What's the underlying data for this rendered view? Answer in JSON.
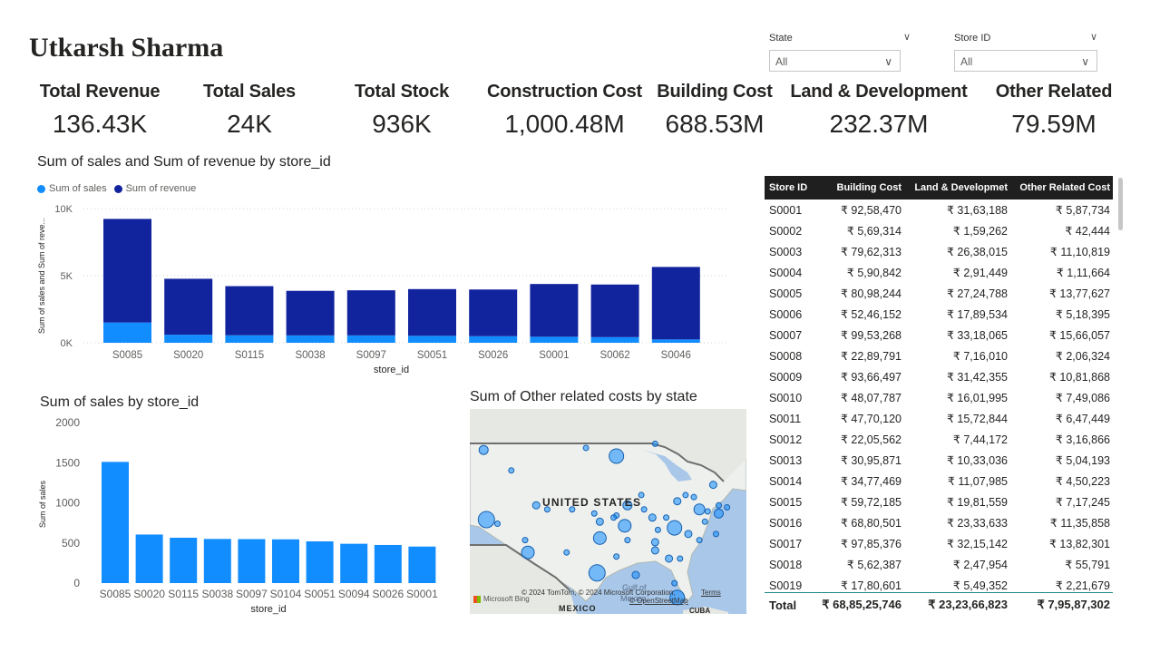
{
  "header": {
    "title": "Utkarsh Sharma"
  },
  "slicers": [
    {
      "label": "State",
      "value": "All"
    },
    {
      "label": "Store ID",
      "value": "All"
    }
  ],
  "kpis": [
    {
      "label": "Total Revenue",
      "value": "136.43K"
    },
    {
      "label": "Total Sales",
      "value": "24K"
    },
    {
      "label": "Total Stock",
      "value": "936K"
    },
    {
      "label": "Construction Cost",
      "value": "1,000.48M"
    },
    {
      "label": "Building Cost",
      "value": "688.53M"
    },
    {
      "label": "Land & Development",
      "value": "232.37M"
    },
    {
      "label": "Other Related",
      "value": "79.59M"
    }
  ],
  "colors": {
    "sales": "#118DFF",
    "revenue": "#12239E",
    "table_header": "#1f1f1f"
  },
  "chart1": {
    "title": "Sum of sales and Sum of revenue by store_id",
    "legend": [
      "Sum of sales",
      "Sum of revenue"
    ]
  },
  "chart2": {
    "title": "Sum of sales by store_id"
  },
  "map": {
    "title": "Sum of Other related costs by state",
    "country_label": "UNITED STATES",
    "mexico_label": "MEXICO",
    "gulf_label": "Gulf of",
    "mexico_small": "Mexico",
    "cuba_label": "CUBA",
    "copyright": "© 2024 TomTom, © 2024 Microsoft Corporation,",
    "terms": "Terms",
    "osm": "© OpenStreetMap",
    "bing": "Microsoft Bing"
  },
  "chart_data": [
    {
      "type": "bar",
      "stacked": true,
      "title": "Sum of sales and Sum of revenue by store_id",
      "xlabel": "store_id",
      "ylabel": "Sum of sales and Sum of reve...",
      "ylim": [
        0,
        10000
      ],
      "yticks": [
        "0K",
        "5K",
        "10K"
      ],
      "categories": [
        "S0085",
        "S0020",
        "S0115",
        "S0038",
        "S0097",
        "S0051",
        "S0026",
        "S0001",
        "S0062",
        "S0046"
      ],
      "series": [
        {
          "name": "Sum of sales",
          "values": [
            1510,
            600,
            560,
            550,
            550,
            520,
            490,
            450,
            420,
            250
          ]
        },
        {
          "name": "Sum of revenue",
          "values": [
            7720,
            4170,
            3660,
            3320,
            3360,
            3480,
            3480,
            3930,
            3920,
            5400
          ]
        }
      ],
      "legend_position": "top-left",
      "grid": true
    },
    {
      "type": "bar",
      "title": "Sum of sales by store_id",
      "xlabel": "store_id",
      "ylabel": "Sum of sales",
      "ylim": [
        0,
        2000
      ],
      "yticks": [
        "0",
        "500",
        "1000",
        "1500",
        "2000"
      ],
      "categories": [
        "S0085",
        "S0020",
        "S0115",
        "S0038",
        "S0097",
        "S0104",
        "S0051",
        "S0094",
        "S0026",
        "S0001"
      ],
      "values": [
        1510,
        605,
        565,
        550,
        548,
        545,
        520,
        490,
        475,
        455
      ],
      "grid": false
    }
  ],
  "table": {
    "headers": [
      "Store ID",
      "Building Cost",
      "Land & Developmet",
      "Other Related Cost"
    ],
    "rows": [
      [
        "S0001",
        "₹ 92,58,470",
        "₹ 31,63,188",
        "₹ 5,87,734"
      ],
      [
        "S0002",
        "₹ 5,69,314",
        "₹ 1,59,262",
        "₹ 42,444"
      ],
      [
        "S0003",
        "₹ 79,62,313",
        "₹ 26,38,015",
        "₹ 11,10,819"
      ],
      [
        "S0004",
        "₹ 5,90,842",
        "₹ 2,91,449",
        "₹ 1,11,664"
      ],
      [
        "S0005",
        "₹ 80,98,244",
        "₹ 27,24,788",
        "₹ 13,77,627"
      ],
      [
        "S0006",
        "₹ 52,46,152",
        "₹ 17,89,534",
        "₹ 5,18,395"
      ],
      [
        "S0007",
        "₹ 99,53,268",
        "₹ 33,18,065",
        "₹ 15,66,057"
      ],
      [
        "S0008",
        "₹ 22,89,791",
        "₹ 7,16,010",
        "₹ 2,06,324"
      ],
      [
        "S0009",
        "₹ 93,66,497",
        "₹ 31,42,355",
        "₹ 10,81,868"
      ],
      [
        "S0010",
        "₹ 48,07,787",
        "₹ 16,01,995",
        "₹ 7,49,086"
      ],
      [
        "S0011",
        "₹ 47,70,120",
        "₹ 15,72,844",
        "₹ 6,47,449"
      ],
      [
        "S0012",
        "₹ 22,05,562",
        "₹ 7,44,172",
        "₹ 3,16,866"
      ],
      [
        "S0013",
        "₹ 30,95,871",
        "₹ 10,33,036",
        "₹ 5,04,193"
      ],
      [
        "S0014",
        "₹ 34,77,469",
        "₹ 11,07,985",
        "₹ 4,50,223"
      ],
      [
        "S0015",
        "₹ 59,72,185",
        "₹ 19,81,559",
        "₹ 7,17,245"
      ],
      [
        "S0016",
        "₹ 68,80,501",
        "₹ 23,33,633",
        "₹ 11,35,858"
      ],
      [
        "S0017",
        "₹ 97,85,376",
        "₹ 32,15,142",
        "₹ 13,82,301"
      ],
      [
        "S0018",
        "₹ 5,62,387",
        "₹ 2,47,954",
        "₹ 55,791"
      ],
      [
        "S0019",
        "₹ 17,80,601",
        "₹ 5,49,352",
        "₹ 2,21,679"
      ]
    ],
    "total": [
      "Total",
      "₹ 68,85,25,746",
      "₹ 23,23,66,823",
      "₹ 7,95,87,302"
    ]
  },
  "map_bubbles": [
    [
      0.05,
      0.2,
      5
    ],
    [
      0.42,
      0.19,
      3
    ],
    [
      0.53,
      0.23,
      8
    ],
    [
      0.67,
      0.17,
      3
    ],
    [
      0.15,
      0.3,
      3
    ],
    [
      0.88,
      0.37,
      4
    ],
    [
      0.78,
      0.42,
      3
    ],
    [
      0.62,
      0.42,
      3
    ],
    [
      0.57,
      0.47,
      5
    ],
    [
      0.75,
      0.45,
      4
    ],
    [
      0.81,
      0.43,
      3
    ],
    [
      0.53,
      0.52,
      3
    ],
    [
      0.28,
      0.49,
      3
    ],
    [
      0.24,
      0.47,
      4
    ],
    [
      0.63,
      0.49,
      3
    ],
    [
      0.66,
      0.53,
      4
    ],
    [
      0.71,
      0.53,
      3
    ],
    [
      0.83,
      0.49,
      6
    ],
    [
      0.9,
      0.47,
      3
    ],
    [
      0.93,
      0.48,
      3
    ],
    [
      0.52,
      0.53,
      3
    ],
    [
      0.37,
      0.49,
      3
    ],
    [
      0.45,
      0.51,
      3
    ],
    [
      0.1,
      0.56,
      3
    ],
    [
      0.06,
      0.54,
      9
    ],
    [
      0.47,
      0.55,
      4
    ],
    [
      0.56,
      0.57,
      7
    ],
    [
      0.74,
      0.58,
      8
    ],
    [
      0.85,
      0.55,
      3
    ],
    [
      0.9,
      0.51,
      5
    ],
    [
      0.86,
      0.5,
      3
    ],
    [
      0.68,
      0.59,
      3
    ],
    [
      0.79,
      0.61,
      4
    ],
    [
      0.2,
      0.64,
      3
    ],
    [
      0.47,
      0.63,
      7
    ],
    [
      0.67,
      0.65,
      4
    ],
    [
      0.83,
      0.64,
      3
    ],
    [
      0.57,
      0.64,
      3
    ],
    [
      0.21,
      0.7,
      7
    ],
    [
      0.35,
      0.7,
      3
    ],
    [
      0.89,
      0.61,
      3
    ],
    [
      0.67,
      0.69,
      4
    ],
    [
      0.53,
      0.72,
      3
    ],
    [
      0.72,
      0.73,
      4
    ],
    [
      0.46,
      0.8,
      9
    ],
    [
      0.6,
      0.81,
      4
    ],
    [
      0.76,
      0.73,
      3
    ],
    [
      0.74,
      0.85,
      3
    ],
    [
      0.75,
      0.92,
      8
    ]
  ]
}
